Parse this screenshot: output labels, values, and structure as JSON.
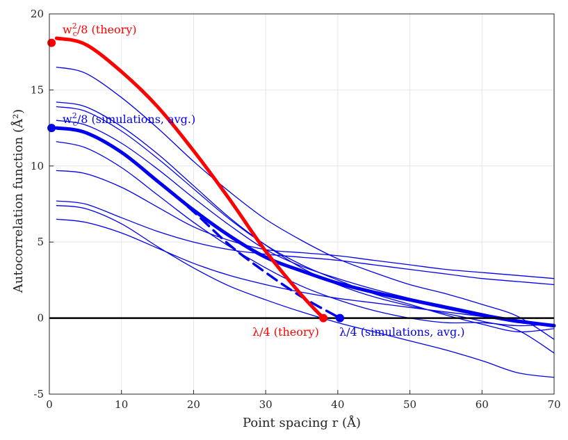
{
  "chart_data": {
    "type": "line",
    "xlabel": "Point spacing r (Å)",
    "ylabel": "Autocorrelation function (Å²)",
    "xlim": [
      0,
      70
    ],
    "ylim": [
      -5,
      20
    ],
    "xticks": [
      0,
      10,
      20,
      30,
      40,
      50,
      60,
      70
    ],
    "yticks": [
      -5,
      0,
      5,
      10,
      15,
      20
    ],
    "grid": true,
    "colors": {
      "theory": "#ff0000",
      "sim": "#0000ee",
      "zero": "#000000",
      "grid": "#e6e6e6"
    },
    "series": [
      {
        "name": "theory",
        "style": "thick-red",
        "x": [
          1,
          5,
          10,
          15,
          20,
          25,
          30,
          35,
          38
        ],
        "y": [
          18.4,
          18.0,
          16.2,
          13.9,
          11.0,
          7.8,
          4.4,
          1.5,
          0
        ]
      },
      {
        "name": "simulations avg.",
        "style": "thick-blue",
        "x": [
          1,
          5,
          10,
          15,
          20,
          25,
          30,
          35,
          40,
          45,
          50,
          55,
          60,
          65,
          70
        ],
        "y": [
          12.5,
          12.2,
          10.9,
          9.0,
          7.1,
          5.4,
          4.0,
          3.1,
          2.3,
          1.7,
          1.2,
          0.7,
          0.2,
          -0.2,
          -0.5
        ]
      },
      {
        "name": "fit",
        "style": "dashed-blue",
        "x": [
          1,
          5,
          10,
          15,
          20,
          25,
          30,
          35,
          40.3
        ],
        "y": [
          12.5,
          12.2,
          10.9,
          9.0,
          7.0,
          4.8,
          3.0,
          1.4,
          0
        ]
      },
      {
        "name": "sim 1",
        "style": "thin",
        "x": [
          1,
          5,
          10,
          15,
          20,
          25,
          30,
          35,
          40,
          45,
          50,
          55,
          60,
          65,
          70
        ],
        "y": [
          16.5,
          16.1,
          14.5,
          12.5,
          10.3,
          8.3,
          6.5,
          5.1,
          3.9,
          3.0,
          2.2,
          1.6,
          0.9,
          0.1,
          -1.4
        ]
      },
      {
        "name": "sim 2",
        "style": "thin",
        "x": [
          1,
          5,
          10,
          15,
          20,
          25,
          30,
          35,
          40,
          45,
          50,
          55,
          60,
          65,
          70
        ],
        "y": [
          14.2,
          13.9,
          12.6,
          10.8,
          8.7,
          6.6,
          4.8,
          3.3,
          2.2,
          1.4,
          0.8,
          0.3,
          -0.2,
          -0.8,
          -2.3
        ]
      },
      {
        "name": "sim 3",
        "style": "thin",
        "x": [
          1,
          5,
          10,
          15,
          20,
          25,
          30,
          35,
          40,
          45,
          50,
          55,
          60,
          65,
          70
        ],
        "y": [
          13.9,
          13.6,
          12.3,
          10.5,
          8.5,
          6.5,
          4.8,
          3.5,
          2.5,
          1.6,
          0.9,
          0.2,
          -0.4,
          -0.9,
          -0.7
        ]
      },
      {
        "name": "sim 4",
        "style": "thin",
        "x": [
          1,
          5,
          10,
          15,
          20,
          25,
          30,
          35,
          40,
          45,
          50,
          55,
          60,
          65,
          70
        ],
        "y": [
          13.0,
          12.7,
          11.5,
          9.8,
          7.9,
          6.1,
          4.5,
          3.4,
          2.6,
          1.9,
          1.3,
          0.8,
          0.3,
          -0.2,
          -0.6
        ]
      },
      {
        "name": "sim 5",
        "style": "thin",
        "x": [
          1,
          5,
          10,
          15,
          20,
          25,
          30,
          35,
          40,
          45,
          50,
          55,
          60,
          65,
          70
        ],
        "y": [
          11.6,
          11.2,
          9.9,
          8.1,
          6.3,
          4.7,
          3.3,
          2.1,
          1.2,
          0.5,
          0.0,
          -0.3,
          -0.3,
          -0.5,
          -0.4
        ]
      },
      {
        "name": "sim 6",
        "style": "thin",
        "x": [
          1,
          5,
          10,
          15,
          20,
          25,
          30,
          35,
          40,
          45,
          50,
          55,
          60,
          65,
          70
        ],
        "y": [
          9.7,
          9.5,
          8.6,
          7.3,
          6.0,
          5.1,
          4.5,
          4.3,
          4.1,
          3.8,
          3.5,
          3.2,
          3.0,
          2.8,
          2.6
        ]
      },
      {
        "name": "sim 7",
        "style": "thin",
        "x": [
          1,
          5,
          10,
          15,
          20,
          25,
          30,
          35,
          40,
          45,
          50,
          55,
          60,
          65,
          70
        ],
        "y": [
          7.7,
          7.5,
          6.6,
          5.7,
          5.0,
          4.5,
          4.2,
          4.0,
          3.8,
          3.5,
          3.2,
          2.9,
          2.6,
          2.4,
          2.2
        ]
      },
      {
        "name": "sim 8",
        "style": "thin",
        "x": [
          1,
          5,
          10,
          15,
          20,
          25,
          30,
          35,
          40,
          45,
          50,
          55,
          60,
          65,
          70
        ],
        "y": [
          7.4,
          7.2,
          6.2,
          4.7,
          3.3,
          2.1,
          1.2,
          0.4,
          -0.3,
          -0.9,
          -1.5,
          -2.1,
          -2.8,
          -3.6,
          -3.9
        ]
      },
      {
        "name": "sim 9",
        "style": "thin",
        "x": [
          1,
          5,
          10,
          15,
          20,
          25,
          30,
          35,
          40,
          45,
          50,
          55,
          60,
          65,
          70
        ],
        "y": [
          6.5,
          6.3,
          5.6,
          4.6,
          3.6,
          2.8,
          2.2,
          1.7,
          1.3,
          1.0,
          0.7,
          0.4,
          0.1,
          -0.3,
          -0.5
        ]
      }
    ],
    "markers": [
      {
        "name": "wc-theory",
        "x": 0.3,
        "y": 18.1,
        "color": "#ff0000"
      },
      {
        "name": "wc-sim",
        "x": 0.3,
        "y": 12.5,
        "color": "#0000ee"
      },
      {
        "name": "lambda-theory",
        "x": 38,
        "y": 0,
        "color": "#ff0000"
      },
      {
        "name": "lambda-sim",
        "x": 40.3,
        "y": 0,
        "color": "#0000ee"
      }
    ],
    "annotations": [
      {
        "name": "annotation-wc-theory",
        "prefix": "w",
        "sup": "2",
        "sub": "c",
        "suffix": "/8 (theory)",
        "color": "#ff0000"
      },
      {
        "name": "annotation-wc-sim",
        "prefix": "w",
        "sup": "2",
        "sub": "c",
        "suffix": "/8 (simulations, avg.)",
        "color": "#0000ee"
      },
      {
        "name": "annotation-lambda-theory",
        "text": "λ/4 (theory)",
        "color": "#ff0000"
      },
      {
        "name": "annotation-lambda-sim",
        "text": "λ/4 (simulations, avg.)",
        "color": "#0000ee"
      }
    ]
  }
}
